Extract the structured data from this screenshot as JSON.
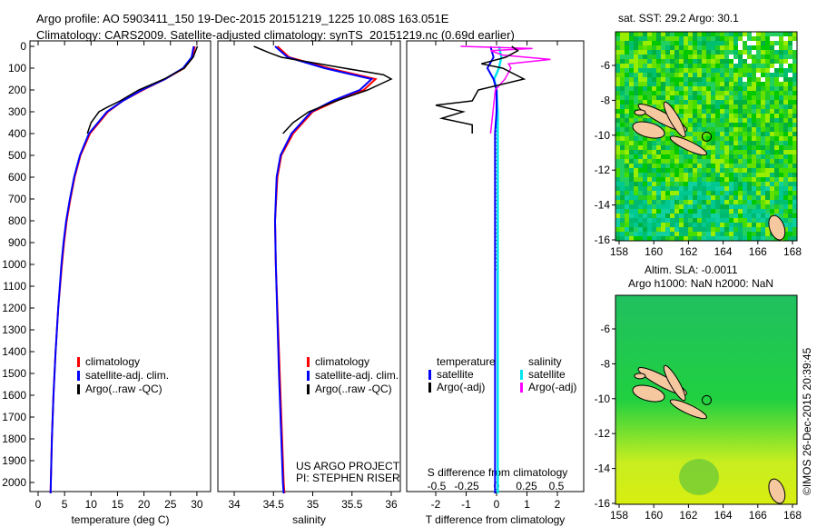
{
  "title": {
    "line1": "Argo profile: AO 5903411_150 19-Dec-2015 20151219_1225 10.08S 163.051E",
    "line2": "Climatology: CARS2009. Satellite-adjusted climatology: synTS_20151219.nc (0.69d earlier)"
  },
  "colors": {
    "clim": "#ff0000",
    "sat": "#0000ff",
    "argo": "#000000",
    "sal_sat": "#00e5ee",
    "sal_argo": "#ff00ff",
    "land": "#f5c8a0"
  },
  "chart_data": [
    {
      "type": "line",
      "name": "temperature",
      "xlabel": "temperature (deg C)",
      "xlim": [
        -1.5,
        32.5
      ],
      "ylim": [
        0,
        2060
      ],
      "yticks": [
        0,
        100,
        200,
        300,
        400,
        500,
        600,
        700,
        800,
        900,
        1000,
        1100,
        1200,
        1300,
        1400,
        1500,
        1600,
        1700,
        1800,
        1900,
        2000
      ],
      "xticks": [
        0,
        5,
        10,
        15,
        20,
        25,
        30
      ],
      "legend": [
        "climatology",
        "satellite-adj. clim.",
        "Argo(..raw -QC)"
      ],
      "depth": [
        0,
        50,
        100,
        150,
        200,
        250,
        300,
        400,
        500,
        600,
        700,
        800,
        900,
        1000,
        1200,
        1400,
        1600,
        1800,
        2000,
        2050
      ],
      "series": [
        {
          "name": "climatology",
          "values": [
            29.6,
            29.2,
            27.6,
            24,
            19.8,
            16,
            13.2,
            9.8,
            8,
            6.9,
            6.1,
            5.4,
            4.9,
            4.5,
            3.8,
            3.3,
            2.9,
            2.6,
            2.4,
            2.35
          ]
        },
        {
          "name": "satellite-adj. clim.",
          "values": [
            29.4,
            29,
            27.4,
            24,
            19.6,
            16,
            13,
            9.6,
            7.9,
            6.8,
            6,
            5.3,
            4.8,
            4.4,
            3.8,
            3.3,
            2.9,
            2.6,
            2.4,
            2.35
          ]
        },
        {
          "name": "Argo",
          "depth": [
            0,
            50,
            100,
            150,
            200,
            250,
            280,
            300,
            350,
            400
          ],
          "values": [
            30.1,
            29.3,
            27.6,
            23.8,
            19,
            15.5,
            13,
            11.5,
            10,
            9.3
          ]
        }
      ]
    },
    {
      "type": "line",
      "name": "salinity",
      "xlabel": "salinity",
      "xlim": [
        33.7,
        36.05
      ],
      "xticks": [
        34,
        34.5,
        35,
        35.5,
        36
      ],
      "legend": [
        "climatology",
        "satellite-adj. clim.",
        "Argo(..raw -QC)"
      ],
      "annotation": [
        "US ARGO PROJECT",
        "PI: STEPHEN RISER"
      ],
      "depth": [
        0,
        50,
        100,
        150,
        200,
        250,
        300,
        400,
        500,
        600,
        800,
        1000,
        1500,
        2000,
        2050
      ],
      "series": [
        {
          "name": "climatology",
          "values": [
            34.55,
            34.7,
            35.2,
            35.8,
            35.65,
            35.3,
            35.0,
            34.75,
            34.6,
            34.55,
            34.52,
            34.53,
            34.58,
            34.63,
            34.64
          ]
        },
        {
          "name": "satellite-adj. clim.",
          "values": [
            34.52,
            34.68,
            35.15,
            35.75,
            35.6,
            35.25,
            34.98,
            34.73,
            34.59,
            34.54,
            34.52,
            34.53,
            34.57,
            34.62,
            34.63
          ]
        },
        {
          "name": "Argo",
          "depth": [
            0,
            30,
            50,
            100,
            130,
            150,
            200,
            250,
            300,
            350,
            400
          ],
          "values": [
            34.25,
            34.45,
            34.6,
            35.4,
            35.9,
            36.0,
            35.7,
            35.3,
            34.95,
            34.75,
            34.62
          ]
        }
      ]
    },
    {
      "type": "line",
      "name": "difference",
      "xlabel": "T difference from climatology",
      "xlabel2": "S difference from climatology",
      "xlim": [
        -2.95,
        2.9
      ],
      "xticks": [
        -2,
        -1,
        0,
        1,
        2
      ],
      "xticks2": [
        -0.5,
        -0.25,
        0,
        0.25,
        0.5
      ],
      "legend_titles": [
        "temperature",
        "salinity"
      ],
      "legend": [
        "satellite",
        "Argo(-adj)",
        "satellite",
        "Argo(-adj)"
      ],
      "depth": [
        0,
        50,
        100,
        150,
        200,
        300,
        400,
        500,
        700,
        1000,
        1500,
        2000,
        2050
      ],
      "series": [
        {
          "name": "T satellite",
          "values": [
            -0.2,
            -0.1,
            -0.3,
            -0.1,
            0,
            0,
            -0.05,
            -0.05,
            -0.05,
            -0.05,
            -0.05,
            -0.05,
            -0.05
          ]
        },
        {
          "name": "S satellite",
          "values": [
            0.02,
            0.04,
            0.02,
            -0.02,
            0,
            0.01,
            0.01,
            0.01,
            0.01,
            0.01,
            0.01,
            0.01,
            0.01
          ]
        },
        {
          "name": "T Argo",
          "depth": [
            0,
            20,
            50,
            80,
            100,
            150,
            200,
            250,
            270,
            300,
            330,
            360,
            400
          ],
          "values": [
            0.5,
            0.7,
            0.3,
            -0.5,
            0.2,
            0.9,
            -0.6,
            -0.8,
            -2,
            -1.1,
            -1.8,
            -0.8,
            -0.8
          ]
        },
        {
          "name": "S Argo",
          "depth": [
            0,
            10,
            20,
            40,
            60,
            80,
            100,
            150,
            200,
            250,
            300,
            350,
            400
          ],
          "values": [
            -0.3,
            0.3,
            -0.05,
            0.05,
            0.45,
            0.1,
            0.12,
            0.07,
            -0.01,
            -0.02,
            -0.03,
            -0.04,
            -0.05
          ]
        }
      ]
    },
    {
      "type": "heatmap",
      "name": "sst-map",
      "title": "sat. SST: 29.2 Argo: 30.1",
      "xticks": [
        158,
        160,
        162,
        164,
        166,
        168
      ],
      "yticks": [
        -6,
        -8,
        -10,
        -12,
        -14,
        -16
      ],
      "xlim": [
        157.8,
        168.3
      ],
      "ylim": [
        -16.1,
        -4.1
      ],
      "argo_position": [
        163.051,
        -10.08
      ]
    },
    {
      "type": "heatmap",
      "name": "sla-map",
      "title": "Altim. SLA: -0.0011",
      "subtitle": "Argo h1000: NaN h2000: NaN",
      "xticks": [
        158,
        160,
        162,
        164,
        166,
        168
      ],
      "yticks": [
        -6,
        -8,
        -10,
        -12,
        -14,
        -16
      ],
      "xlim": [
        157.8,
        168.3
      ],
      "ylim": [
        -16.1,
        -4.1
      ],
      "argo_position": [
        163.051,
        -10.08
      ]
    }
  ],
  "credit": "©IMOS 26-Dec-2015 20:39:45"
}
